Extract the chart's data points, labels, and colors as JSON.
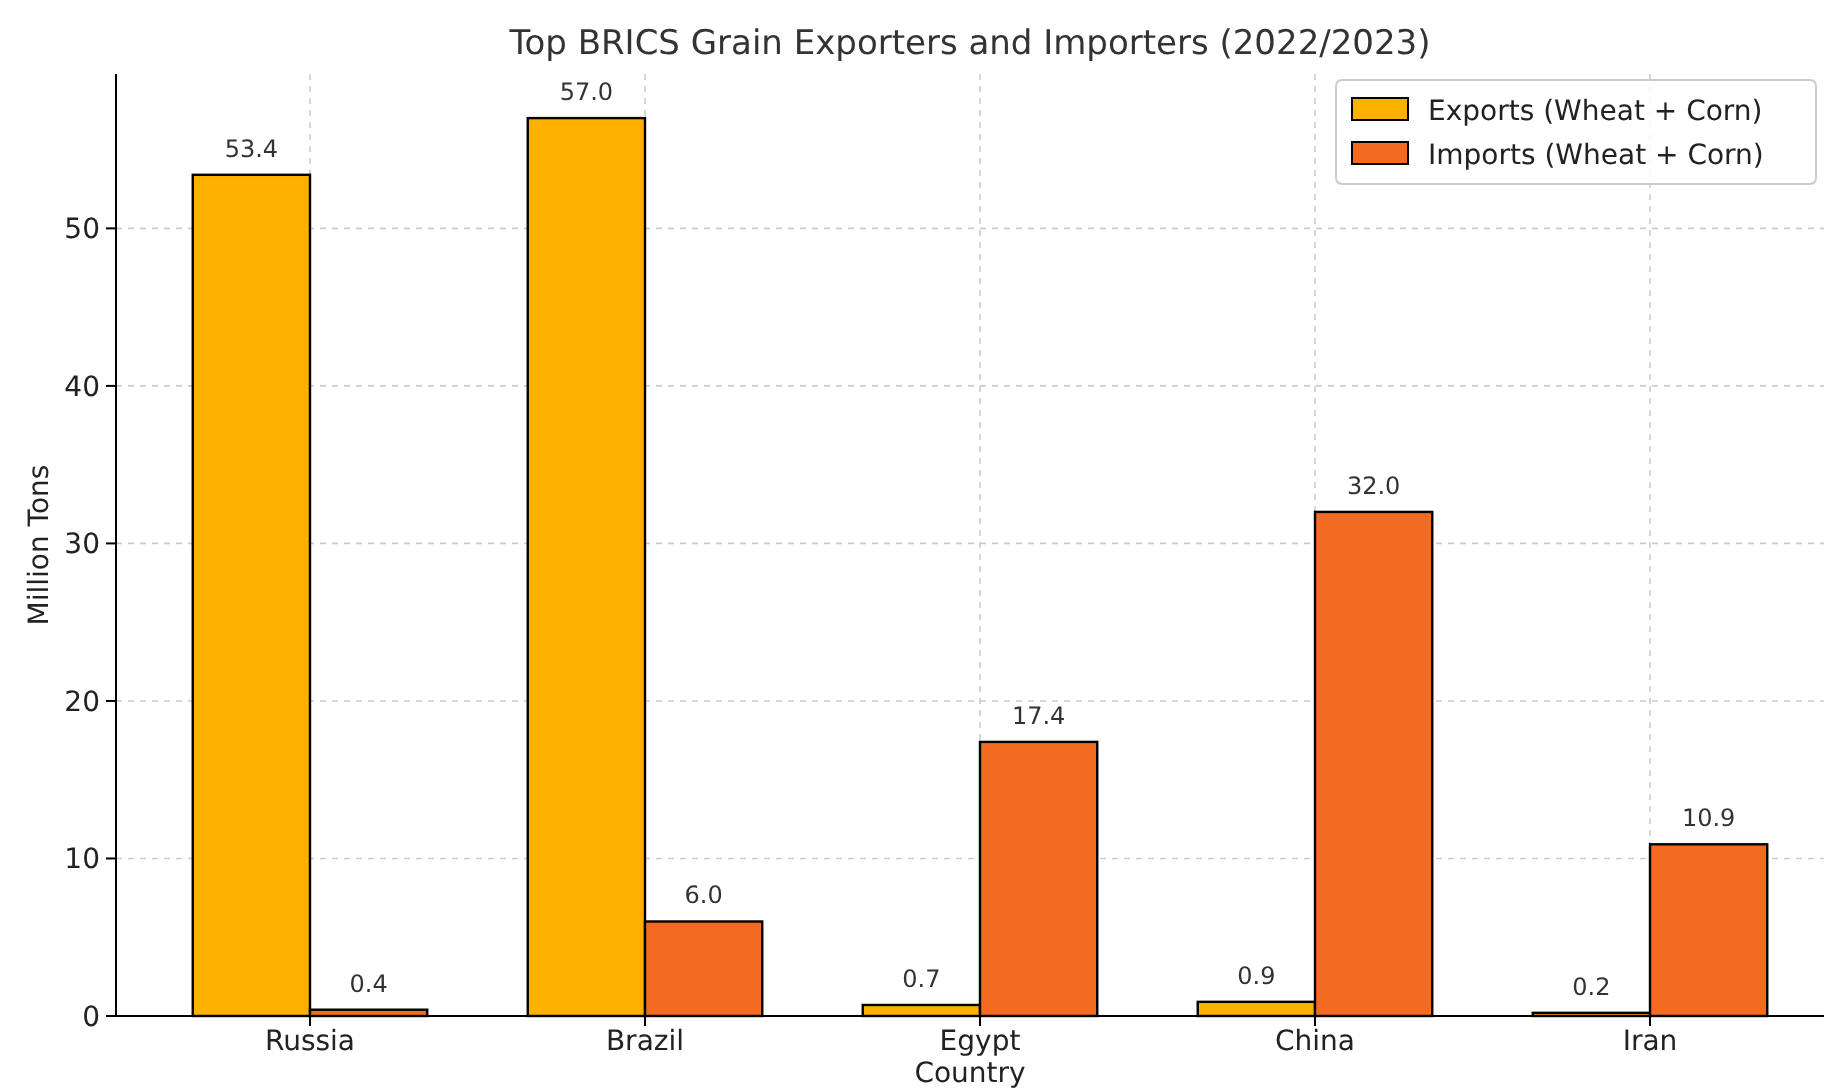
{
  "chart_data": {
    "type": "bar",
    "title": "Top BRICS Grain Exporters and Importers (2022/2023)",
    "xlabel": "Country",
    "ylabel": "Million Tons",
    "categories": [
      "Russia",
      "Brazil",
      "Egypt",
      "China",
      "Iran"
    ],
    "series": [
      {
        "name": "Exports (Wheat + Corn)",
        "color": "#ffb000",
        "values": [
          53.4,
          57.0,
          0.7,
          0.9,
          0.2
        ],
        "value_labels": [
          "53.4",
          "57.0",
          "0.7",
          "0.9",
          "0.2"
        ]
      },
      {
        "name": "Imports (Wheat + Corn)",
        "color": "#f26b21",
        "values": [
          0.4,
          6.0,
          17.4,
          32.0,
          10.9
        ],
        "value_labels": [
          "0.4",
          "6.0",
          "17.4",
          "32.0",
          "10.9"
        ]
      }
    ],
    "ylim": [
      0,
      59.8
    ],
    "yticks": [
      0,
      10,
      20,
      30,
      40,
      50
    ],
    "grid": true,
    "legend": "top right"
  }
}
